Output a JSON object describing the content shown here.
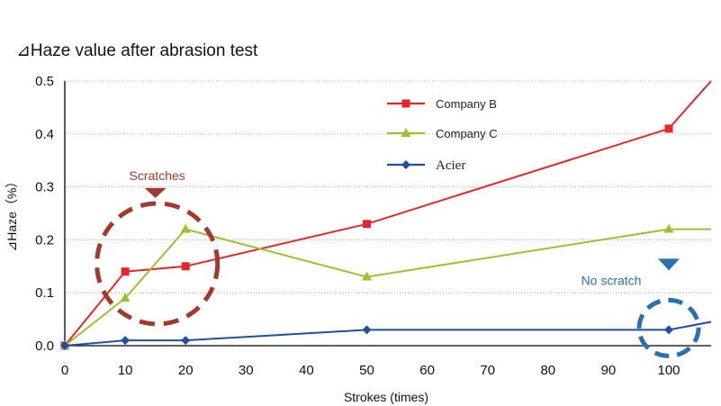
{
  "chart_data": {
    "type": "line",
    "title": "⊿Haze value after abrasion test",
    "xlabel": "Strokes (times)",
    "ylabel": "⊿Haze（%）",
    "xlim": [
      0,
      107
    ],
    "ylim": [
      0,
      0.5
    ],
    "x_ticks": [
      "0",
      "10",
      "20",
      "30",
      "40",
      "50",
      "60",
      "70",
      "80",
      "90",
      "100"
    ],
    "y_ticks": [
      "0.0",
      "0.1",
      "0.2",
      "0.3",
      "0.4",
      "0.5"
    ],
    "grid": "horizontal",
    "legend_position": "top-center",
    "series": [
      {
        "name": "Company B",
        "color": "#e8262a",
        "marker": "square",
        "x": [
          0,
          10,
          20,
          50,
          100,
          107
        ],
        "y": [
          0,
          0.14,
          0.15,
          0.23,
          0.41,
          0.5
        ]
      },
      {
        "name": "Company C",
        "color": "#9ac231",
        "marker": "triangle",
        "x": [
          0,
          10,
          20,
          50,
          100,
          107
        ],
        "y": [
          0,
          0.09,
          0.22,
          0.13,
          0.22,
          0.22
        ]
      },
      {
        "name": "Acier",
        "color": "#1f4ea3",
        "marker": "diamond",
        "x": [
          0,
          10,
          20,
          50,
          100,
          107
        ],
        "y": [
          0,
          0.01,
          0.01,
          0.03,
          0.03,
          0.045
        ]
      }
    ],
    "annotations": [
      {
        "text": "Scratches",
        "color": "#a3382c",
        "target_x": 15,
        "target_y": 0.16
      },
      {
        "text": "No scratch",
        "color": "#2a6fb0",
        "target_x": 100,
        "target_y": 0.035
      }
    ]
  }
}
